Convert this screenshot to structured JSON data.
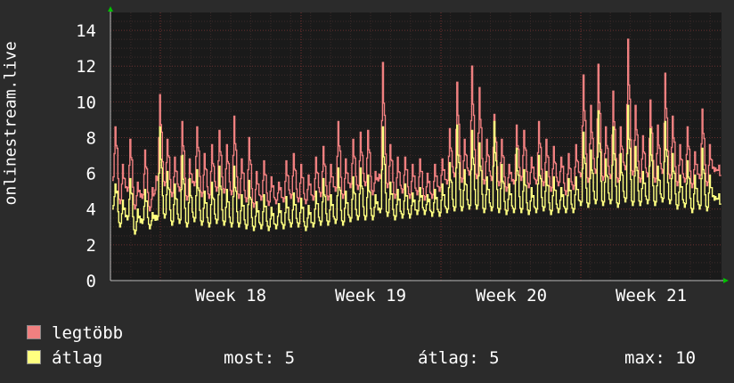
{
  "chart_data": {
    "type": "line",
    "ylabel": "onlinestream.live",
    "ylim": [
      0,
      15
    ],
    "yticks": [
      0,
      2,
      4,
      6,
      8,
      10,
      12,
      14
    ],
    "xlabels": [
      "Week 18",
      "Week 19",
      "Week 20",
      "Week 21"
    ],
    "grid": true,
    "legend_position": "bottom-left",
    "series": [
      {
        "name": "legtöbb",
        "color": "#f08080",
        "peaks": [
          8.6,
          6.5,
          7.9,
          5.5,
          7.3,
          5.2,
          10.4,
          7.9,
          6.9,
          8.9,
          6.8,
          8.6,
          7.1,
          7.6,
          8.4,
          7.6,
          9.2,
          6.8,
          8.0,
          6.1,
          6.7,
          5.8,
          5.5,
          6.7,
          7.1,
          6.5,
          5.9,
          6.9,
          7.5,
          6.5,
          8.9,
          6.8,
          7.9,
          8.3,
          8.4,
          6.1,
          12.2,
          7.6,
          6.9,
          6.9,
          6.5,
          6.8,
          6.0,
          6.5,
          6.8,
          8.5,
          11.1,
          7.9,
          12.0,
          10.8,
          7.9,
          9.3,
          7.9,
          6.5,
          8.7,
          8.4,
          6.9,
          8.9,
          7.9,
          7.5,
          6.9,
          7.1,
          7.6,
          11.5,
          9.8,
          12.1,
          8.6,
          10.6,
          8.6,
          13.5,
          9.8,
          8.1,
          10.1,
          8.7,
          11.6,
          9.2,
          7.6,
          8.6,
          7.2,
          9.6,
          7.6,
          6.2
        ],
        "troughs": [
          5.6,
          4.3,
          5.0,
          4.0,
          4.6,
          3.9,
          5.6,
          5.3,
          4.7,
          5.0,
          4.5,
          5.3,
          4.7,
          4.6,
          5.0,
          4.9,
          4.8,
          4.6,
          4.4,
          4.1,
          4.5,
          4.2,
          4.3,
          4.4,
          4.6,
          4.4,
          4.3,
          4.5,
          4.7,
          4.5,
          5.0,
          4.6,
          5.2,
          5.1,
          5.3,
          4.8,
          5.7,
          5.2,
          4.6,
          4.9,
          4.6,
          4.8,
          4.5,
          4.6,
          5.0,
          5.4,
          5.8,
          5.5,
          5.9,
          5.7,
          5.4,
          5.6,
          5.3,
          5.0,
          5.4,
          5.6,
          5.2,
          5.4,
          5.3,
          5.0,
          5.3,
          4.8,
          5.1,
          5.8,
          5.5,
          6.0,
          5.6,
          5.7,
          5.5,
          6.2,
          5.9,
          5.5,
          5.8,
          5.5,
          6.0,
          5.7,
          5.3,
          5.5,
          5.2,
          5.7,
          5.3,
          6.1
        ]
      },
      {
        "name": "átlag",
        "color": "#ffff80",
        "peaks": [
          5.4,
          4.5,
          5.7,
          4.0,
          5.1,
          3.8,
          8.6,
          6.1,
          5.4,
          7.0,
          5.7,
          6.2,
          5.0,
          5.5,
          6.4,
          5.1,
          6.4,
          4.8,
          5.6,
          4.4,
          4.8,
          4.1,
          4.3,
          4.7,
          4.9,
          4.6,
          4.2,
          5.0,
          5.7,
          4.8,
          6.3,
          5.0,
          5.8,
          6.3,
          5.9,
          4.8,
          8.6,
          5.5,
          5.1,
          5.4,
          4.9,
          5.2,
          4.8,
          5.1,
          5.4,
          6.6,
          8.7,
          6.2,
          8.4,
          7.7,
          5.8,
          8.9,
          6.5,
          5.4,
          7.4,
          6.2,
          5.2,
          7.0,
          6.1,
          5.8,
          5.2,
          5.7,
          5.8,
          8.3,
          7.3,
          9.5,
          6.8,
          8.6,
          7.1,
          9.8,
          7.5,
          6.1,
          8.5,
          6.4,
          8.9,
          7.1,
          5.9,
          6.7,
          5.9,
          7.4,
          5.9,
          4.6
        ],
        "troughs": [
          4.0,
          3.0,
          3.4,
          2.6,
          3.2,
          2.9,
          3.4,
          3.5,
          3.1,
          3.2,
          3.0,
          3.3,
          3.1,
          3.0,
          3.2,
          3.1,
          3.0,
          3.0,
          2.9,
          2.8,
          2.9,
          2.8,
          2.9,
          2.9,
          3.0,
          3.0,
          2.8,
          3.0,
          3.1,
          3.1,
          3.2,
          3.1,
          3.3,
          3.4,
          3.4,
          3.4,
          3.8,
          3.6,
          3.4,
          3.5,
          3.5,
          3.7,
          3.7,
          3.6,
          3.6,
          3.8,
          3.9,
          3.9,
          4.0,
          4.0,
          3.8,
          3.9,
          3.8,
          3.7,
          3.8,
          3.8,
          3.7,
          3.8,
          3.9,
          3.7,
          3.8,
          3.8,
          3.8,
          4.2,
          4.1,
          4.3,
          4.2,
          4.3,
          4.1,
          4.4,
          4.2,
          4.2,
          4.3,
          4.2,
          4.4,
          4.3,
          4.0,
          4.1,
          3.8,
          4.0,
          3.9,
          4.5
        ]
      }
    ]
  },
  "legend": [
    {
      "label": "legtöbb",
      "color": "#f08080"
    },
    {
      "label": "átlag",
      "color": "#ffff80"
    }
  ],
  "stats": {
    "most": "most: 5",
    "atlag": "átlag: 5",
    "max": "max: 10"
  },
  "colors": {
    "background": "#2b2b2b",
    "plot": "#1a1a1a",
    "grid": "#5a2e2e",
    "axis_arrow": "#00c000"
  }
}
